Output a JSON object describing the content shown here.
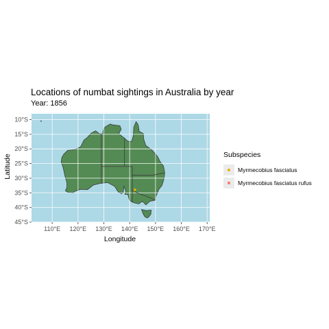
{
  "chart_data": {
    "type": "scatter",
    "title": "Locations of numbat sightings in Australia by year",
    "subtitle": "Year: 1856",
    "xlabel": "Longitude",
    "ylabel": "Latitude",
    "xlim": [
      102,
      171
    ],
    "ylim": [
      -45,
      -8
    ],
    "x_ticks": [
      110,
      120,
      130,
      140,
      150,
      160,
      170
    ],
    "x_tick_labels": [
      "110°E",
      "120°E",
      "130°E",
      "140°E",
      "150°E",
      "160°E",
      "170°E"
    ],
    "y_ticks": [
      -10,
      -15,
      -20,
      -25,
      -30,
      -35,
      -40,
      -45
    ],
    "y_tick_labels": [
      "10°S",
      "15°S",
      "20°S",
      "25°S",
      "30°S",
      "35°S",
      "40°S",
      "45°S"
    ],
    "grid": true,
    "legend_position": "right",
    "legend_title": "Subspecies",
    "background_color": "#add8e6",
    "land_color": "#548b54",
    "border_color": "#3a3a3a",
    "series": [
      {
        "name": "Myrmecobius fasciatus",
        "color": "#e6b300",
        "x": [
          142.0
        ],
        "y": [
          -34.0
        ]
      },
      {
        "name": "Myrmecobius fasciatus rufus",
        "color": "#f8766d",
        "x": [],
        "y": []
      }
    ]
  }
}
